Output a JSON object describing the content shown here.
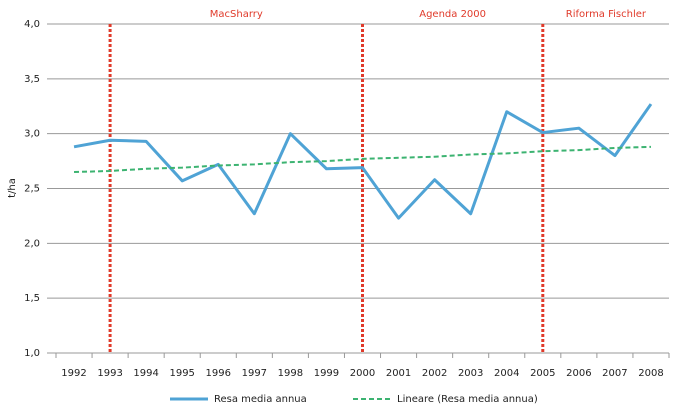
{
  "chart_data": {
    "type": "line",
    "y_label": "t/ha",
    "categories": [
      "1992",
      "1993",
      "1994",
      "1995",
      "1996",
      "1997",
      "1998",
      "1999",
      "2000",
      "2001",
      "2002",
      "2003",
      "2004",
      "2005",
      "2006",
      "2007",
      "2008"
    ],
    "series": [
      {
        "name": "Resa media annua",
        "color": "#4fa3d5",
        "style": "solid",
        "values": [
          2.88,
          2.94,
          2.93,
          2.57,
          2.72,
          2.27,
          3.0,
          2.68,
          2.69,
          2.23,
          2.58,
          2.27,
          3.2,
          3.01,
          3.05,
          2.8,
          3.27
        ]
      },
      {
        "name": "Lineare (Resa media annua)",
        "color": "#3cb371",
        "style": "dashed",
        "values": [
          2.65,
          2.66,
          2.68,
          2.69,
          2.71,
          2.72,
          2.74,
          2.75,
          2.77,
          2.78,
          2.79,
          2.81,
          2.82,
          2.84,
          2.85,
          2.87,
          2.88
        ]
      }
    ],
    "markers": [
      {
        "category": "1993",
        "label": "MacSharry"
      },
      {
        "category": "2000",
        "label": "Agenda 2000"
      },
      {
        "category": "2005",
        "label": "Riforma Fischler"
      }
    ],
    "marker_color": "#e03a2a",
    "ylim": [
      1,
      4
    ],
    "yticks": [
      {
        "value": 1,
        "label": "1,0"
      },
      {
        "value": 1.5,
        "label": "1,5"
      },
      {
        "value": 2,
        "label": "2,0"
      },
      {
        "value": 2.5,
        "label": "2,5"
      },
      {
        "value": 3,
        "label": "3,0"
      },
      {
        "value": 3.5,
        "label": "3,5"
      },
      {
        "value": 4,
        "label": "4,0"
      }
    ],
    "grid": true,
    "legend": "bottom"
  }
}
